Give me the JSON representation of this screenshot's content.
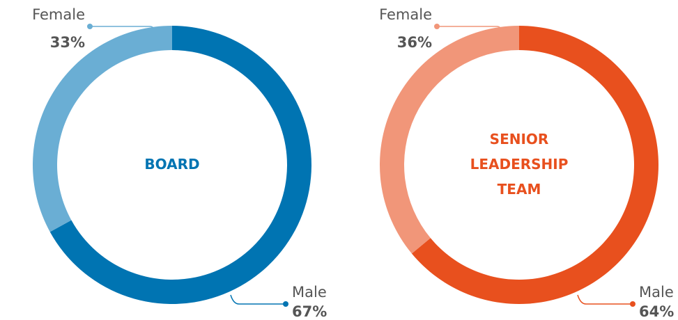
{
  "chart_data": [
    {
      "type": "donut",
      "title": "BOARD",
      "categories": [
        "Female",
        "Male"
      ],
      "values": [
        33,
        67
      ],
      "value_labels": [
        "33%",
        "67%"
      ],
      "colors": [
        "#6aaed4",
        "#0074b2"
      ],
      "title_color": "#0074b2"
    },
    {
      "type": "donut",
      "title": "SENIOR LEADERSHIP TEAM",
      "categories": [
        "Female",
        "Male"
      ],
      "values": [
        36,
        64
      ],
      "value_labels": [
        "36%",
        "64%"
      ],
      "colors": [
        "#f19679",
        "#e8501e"
      ],
      "title_color": "#e8501e"
    }
  ]
}
